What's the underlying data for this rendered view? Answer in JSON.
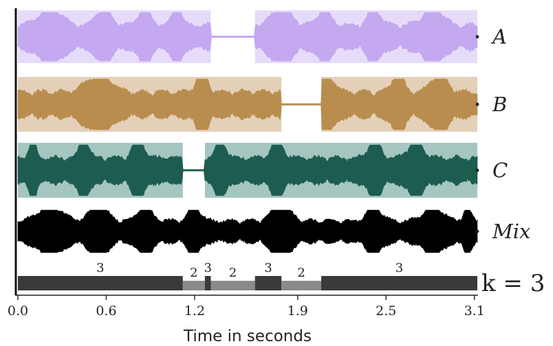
{
  "chart_data": {
    "type": "area",
    "title": "",
    "xlabel": "Time in seconds",
    "xlim": [
      0.0,
      3.12
    ],
    "xticks": [
      "0.0",
      "0.6",
      "1.2",
      "1.9",
      "2.5",
      "3.1"
    ],
    "xtick_values": [
      0.0,
      0.6,
      1.2,
      1.9,
      2.5,
      3.1
    ],
    "tracks": [
      {
        "name": "A",
        "label": "A",
        "fill": "#e6dcf9",
        "wave": "#c4a8f0",
        "active": [
          [
            0.0,
            1.31
          ],
          [
            1.61,
            3.12
          ]
        ],
        "bursts": [
          [
            0.22,
            0.18
          ],
          [
            0.58,
            0.12
          ],
          [
            0.86,
            0.1
          ],
          [
            1.08,
            0.08
          ],
          [
            1.79,
            0.16
          ],
          [
            2.08,
            0.1
          ],
          [
            2.42,
            0.1
          ],
          [
            2.82,
            0.16
          ]
        ]
      },
      {
        "name": "B",
        "label": "B",
        "fill": "#e4d0b8",
        "wave": "#b98d4e",
        "active": [
          [
            0.0,
            1.79
          ],
          [
            2.06,
            3.12
          ]
        ],
        "bursts": [
          [
            0.55,
            0.2
          ],
          [
            1.25,
            0.1
          ],
          [
            2.1,
            0.12
          ],
          [
            2.58,
            0.1
          ],
          [
            2.86,
            0.14
          ]
        ]
      },
      {
        "name": "C",
        "label": "C",
        "fill": "#a5c6c0",
        "wave": "#1d5d50",
        "active": [
          [
            0.0,
            1.12
          ],
          [
            1.27,
            3.12
          ]
        ],
        "bursts": [
          [
            0.1,
            0.06
          ],
          [
            0.45,
            0.08
          ],
          [
            0.82,
            0.1
          ],
          [
            1.38,
            0.08
          ],
          [
            1.76,
            0.1
          ],
          [
            2.42,
            0.1
          ],
          [
            2.7,
            0.12
          ]
        ]
      },
      {
        "name": "Mix",
        "label": "Mix",
        "fill": "none",
        "wave": "#000000",
        "active": [],
        "bursts": [
          [
            0.22,
            0.2
          ],
          [
            0.55,
            0.15
          ],
          [
            0.86,
            0.12
          ],
          [
            1.2,
            0.1
          ],
          [
            1.79,
            0.16
          ],
          [
            2.42,
            0.12
          ],
          [
            2.82,
            0.16
          ],
          [
            3.05,
            0.06
          ]
        ]
      }
    ],
    "speaker_count": {
      "label": "k = 3",
      "segments": [
        {
          "start": 0.0,
          "end": 1.12,
          "count": "3"
        },
        {
          "start": 1.12,
          "end": 1.27,
          "count": "2"
        },
        {
          "start": 1.27,
          "end": 1.31,
          "count": "3"
        },
        {
          "start": 1.31,
          "end": 1.61,
          "count": "2"
        },
        {
          "start": 1.61,
          "end": 1.79,
          "count": "3"
        },
        {
          "start": 1.79,
          "end": 2.06,
          "count": "2"
        },
        {
          "start": 2.06,
          "end": 3.12,
          "count": "3"
        }
      ],
      "colors": {
        "3": "#3a3a3a",
        "2": "#8a8a8a"
      }
    }
  }
}
